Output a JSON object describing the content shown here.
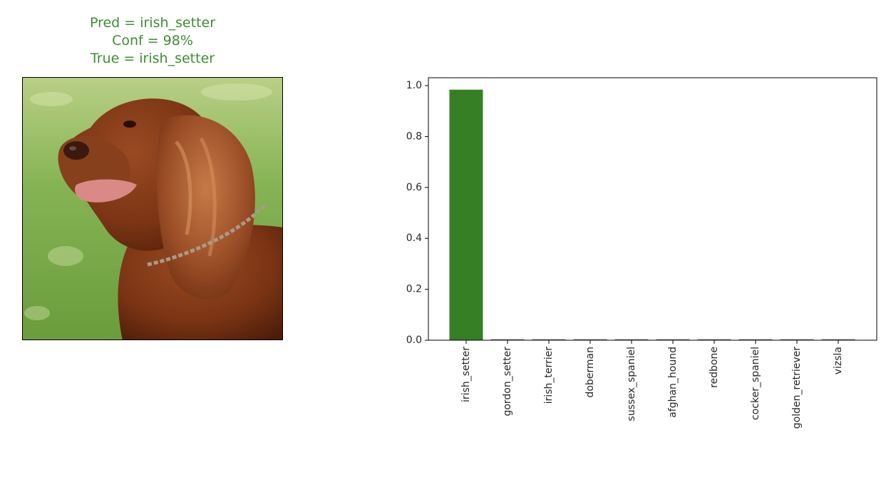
{
  "prediction": {
    "pred_text": "Pred = irish_setter",
    "conf_text": "Conf = 98%",
    "true_text": "True = irish_setter",
    "title_color": "#3c8f2e"
  },
  "image": {
    "subject": "irish setter dog on grass"
  },
  "chart_data": {
    "type": "bar",
    "categories": [
      "irish_setter",
      "gordon_setter",
      "irish_terrier",
      "doberman",
      "sussex_spaniel",
      "afghan_hound",
      "redbone",
      "cocker_spaniel",
      "golden_retriever",
      "vizsla"
    ],
    "values": [
      0.984,
      0.002,
      0.002,
      0.002,
      0.002,
      0.002,
      0.002,
      0.002,
      0.002,
      0.002
    ],
    "bar_colors": [
      "#367f24",
      "#808080",
      "#808080",
      "#808080",
      "#808080",
      "#808080",
      "#808080",
      "#808080",
      "#808080",
      "#808080"
    ],
    "ylim": [
      0,
      1.0
    ],
    "yticks": [
      0.0,
      0.2,
      0.4,
      0.6,
      0.8,
      1.0
    ],
    "grid": false,
    "title": "",
    "xlabel": "",
    "ylabel": ""
  }
}
